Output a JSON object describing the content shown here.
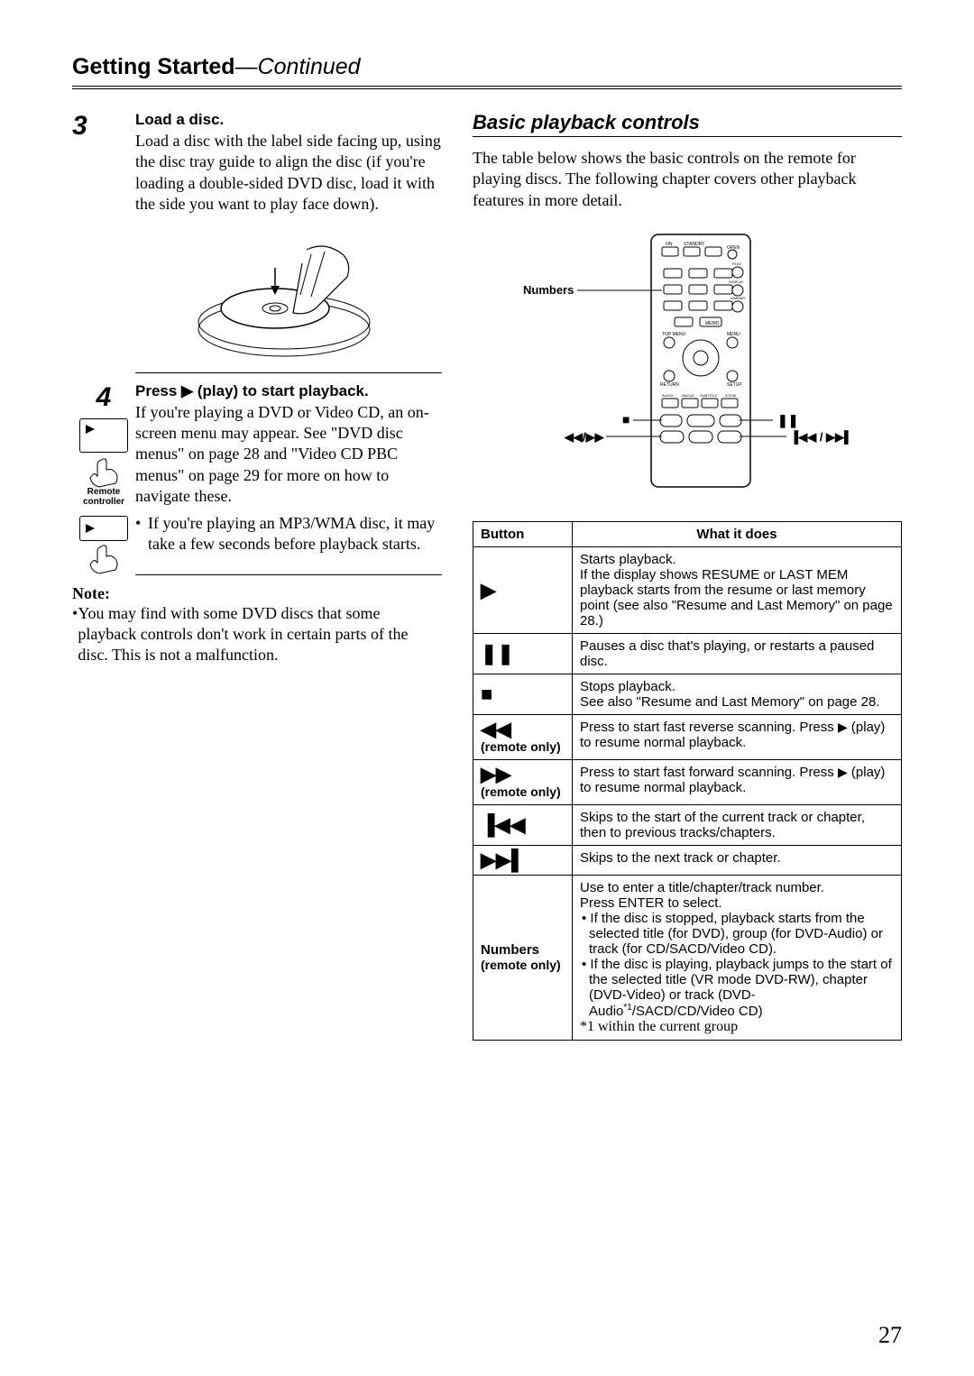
{
  "header": {
    "title_bold": "Getting Started",
    "title_em": "—Continued"
  },
  "left": {
    "step3": {
      "num": "3",
      "title": "Load a disc.",
      "body": "Load a disc with the label side facing up, using the disc tray guide to align the disc (if you're loading a double-sided DVD disc, load it with the side you want to play face down)."
    },
    "step4": {
      "num": "4",
      "title_pre": "Press ",
      "title_post": " (play) to start playback.",
      "body": "If you're playing a DVD or Video CD, an on-screen menu may appear. See \"DVD disc menus\" on page 28 and \"Video CD PBC menus\" on page 29 for more on how to navigate these.",
      "bullet": "If you're playing an MP3/WMA disc, it may take a few seconds before playback starts.",
      "remote_caption": "Remote controller"
    },
    "note": {
      "title": "Note:",
      "body": "You may find with some DVD discs that some playback controls don't work in certain parts of the disc. This is not a malfunction."
    }
  },
  "right": {
    "section_title": "Basic playback controls",
    "intro": "The table below shows the basic controls on the remote for playing discs. The following chapter covers other playback features in more detail.",
    "diagram_labels": {
      "numbers": "Numbers",
      "stop": "■",
      "pause": "❚❚",
      "rewff": "◀◀/▶▶",
      "skip": "▐◀◀ / ▶▶▌"
    },
    "table": {
      "head": {
        "button": "Button",
        "what": "What it does"
      },
      "rows": [
        {
          "btn_sym": "▶",
          "btn_sub": "",
          "desc": "Starts playback.\nIf the display shows RESUME or LAST MEM playback starts from the resume or last memory point (see also \"Resume and Last Memory\" on page 28.)"
        },
        {
          "btn_sym": "❚❚",
          "btn_sub": "",
          "desc": "Pauses a disc that's playing, or restarts a paused disc."
        },
        {
          "btn_sym": "■",
          "btn_sub": "",
          "desc": "Stops playback.\nSee also \"Resume and Last Memory\" on page 28."
        },
        {
          "btn_sym": "◀◀",
          "btn_sub": "(remote only)",
          "desc": "Press to start fast reverse scanning. Press ▶ (play) to resume normal playback."
        },
        {
          "btn_sym": "▶▶",
          "btn_sub": "(remote only)",
          "desc": "Press to start fast forward scanning. Press ▶ (play) to resume normal playback."
        },
        {
          "btn_sym": "▐◀◀",
          "btn_sub": "",
          "desc": "Skips to the start of the current track or chapter, then to previous tracks/chapters."
        },
        {
          "btn_sym": "▶▶▌",
          "btn_sub": "",
          "desc": "Skips to the next track or chapter."
        },
        {
          "btn_sym": "",
          "btn_label": "Numbers",
          "btn_sub": "(remote only)",
          "desc_rich": true,
          "d1": "Use to enter a title/chapter/track number.",
          "d2": "Press ENTER to select.",
          "d3": "If the disc is stopped, playback starts from the selected title (for DVD), group (for DVD-Audio) or track (for CD/SACD/Video CD).",
          "d4a": "If the disc is playing, playback jumps to the start of the selected title (VR mode DVD-RW), chapter (DVD-Video) or track (DVD-Audio",
          "d4sup": "*1",
          "d4b": "/SACD/CD/Video CD)",
          "d5": "*1  within the current group"
        }
      ]
    }
  },
  "pagenum": "27"
}
